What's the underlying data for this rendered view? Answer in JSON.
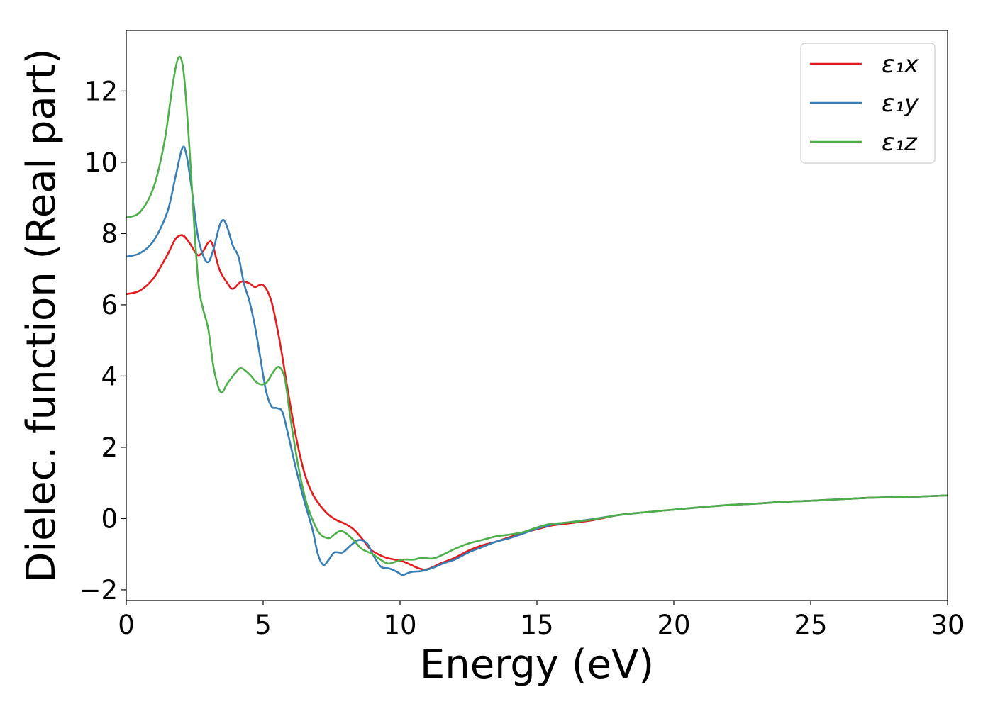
{
  "chart_data": {
    "type": "line",
    "title": "",
    "xlabel": "Energy (eV)",
    "ylabel": "Dielec. function (Real part)",
    "xlim": [
      0,
      30
    ],
    "ylim": [
      -2.3,
      13.7
    ],
    "xticks": [
      0,
      5,
      10,
      15,
      20,
      25,
      30
    ],
    "xtick_labels": [
      "0",
      "5",
      "10",
      "15",
      "20",
      "25",
      "30"
    ],
    "yticks": [
      -2,
      0,
      2,
      4,
      6,
      8,
      10,
      12
    ],
    "ytick_labels": [
      "−2",
      "0",
      "2",
      "4",
      "6",
      "8",
      "10",
      "12"
    ],
    "grid": false,
    "legend": {
      "position": "top-right"
    },
    "series": [
      {
        "name": "ε₁x",
        "color": "#e41a1c",
        "points": [
          [
            0,
            6.3
          ],
          [
            0.5,
            6.4
          ],
          [
            1.0,
            6.75
          ],
          [
            1.5,
            7.4
          ],
          [
            1.8,
            7.85
          ],
          [
            2.05,
            7.95
          ],
          [
            2.3,
            7.75
          ],
          [
            2.6,
            7.4
          ],
          [
            2.8,
            7.5
          ],
          [
            3.0,
            7.75
          ],
          [
            3.15,
            7.7
          ],
          [
            3.4,
            7.0
          ],
          [
            3.7,
            6.6
          ],
          [
            3.9,
            6.45
          ],
          [
            4.2,
            6.65
          ],
          [
            4.5,
            6.6
          ],
          [
            4.7,
            6.5
          ],
          [
            5.0,
            6.55
          ],
          [
            5.3,
            6.1
          ],
          [
            5.6,
            5.0
          ],
          [
            5.9,
            3.6
          ],
          [
            6.2,
            2.3
          ],
          [
            6.5,
            1.3
          ],
          [
            6.8,
            0.7
          ],
          [
            7.1,
            0.35
          ],
          [
            7.4,
            0.1
          ],
          [
            7.7,
            -0.05
          ],
          [
            8.0,
            -0.15
          ],
          [
            8.3,
            -0.3
          ],
          [
            8.6,
            -0.55
          ],
          [
            8.9,
            -0.85
          ],
          [
            9.2,
            -1.0
          ],
          [
            9.5,
            -1.1
          ],
          [
            9.8,
            -1.15
          ],
          [
            10.1,
            -1.2
          ],
          [
            10.4,
            -1.3
          ],
          [
            10.7,
            -1.4
          ],
          [
            11.0,
            -1.42
          ],
          [
            11.5,
            -1.25
          ],
          [
            12.0,
            -1.1
          ],
          [
            12.5,
            -0.9
          ],
          [
            13.0,
            -0.75
          ],
          [
            13.5,
            -0.65
          ],
          [
            14.0,
            -0.52
          ],
          [
            14.5,
            -0.4
          ],
          [
            15.0,
            -0.3
          ],
          [
            15.5,
            -0.2
          ],
          [
            16.0,
            -0.15
          ],
          [
            17.0,
            -0.05
          ],
          [
            18.0,
            0.1
          ],
          [
            19.0,
            0.18
          ],
          [
            20.0,
            0.25
          ],
          [
            21.0,
            0.32
          ],
          [
            22.0,
            0.38
          ],
          [
            23.0,
            0.42
          ],
          [
            24.0,
            0.47
          ],
          [
            25.0,
            0.5
          ],
          [
            26.0,
            0.54
          ],
          [
            27.0,
            0.58
          ],
          [
            28.0,
            0.6
          ],
          [
            29.0,
            0.62
          ],
          [
            30.0,
            0.65
          ]
        ]
      },
      {
        "name": "ε₁y",
        "color": "#377eb8",
        "points": [
          [
            0,
            7.35
          ],
          [
            0.5,
            7.45
          ],
          [
            1.0,
            7.8
          ],
          [
            1.5,
            8.6
          ],
          [
            1.8,
            9.6
          ],
          [
            2.05,
            10.4
          ],
          [
            2.2,
            10.2
          ],
          [
            2.4,
            9.2
          ],
          [
            2.6,
            8.0
          ],
          [
            2.8,
            7.4
          ],
          [
            3.0,
            7.2
          ],
          [
            3.2,
            7.6
          ],
          [
            3.4,
            8.2
          ],
          [
            3.55,
            8.38
          ],
          [
            3.7,
            8.15
          ],
          [
            3.9,
            7.65
          ],
          [
            4.1,
            7.35
          ],
          [
            4.3,
            6.6
          ],
          [
            4.5,
            6.1
          ],
          [
            4.7,
            5.4
          ],
          [
            4.9,
            4.5
          ],
          [
            5.1,
            3.6
          ],
          [
            5.3,
            3.15
          ],
          [
            5.5,
            3.1
          ],
          [
            5.7,
            3.0
          ],
          [
            5.9,
            2.4
          ],
          [
            6.2,
            1.4
          ],
          [
            6.5,
            0.5
          ],
          [
            6.8,
            -0.3
          ],
          [
            7.0,
            -1.0
          ],
          [
            7.2,
            -1.3
          ],
          [
            7.4,
            -1.15
          ],
          [
            7.6,
            -0.95
          ],
          [
            7.9,
            -0.95
          ],
          [
            8.2,
            -0.75
          ],
          [
            8.5,
            -0.6
          ],
          [
            8.8,
            -0.7
          ],
          [
            9.0,
            -1.0
          ],
          [
            9.3,
            -1.35
          ],
          [
            9.6,
            -1.4
          ],
          [
            9.9,
            -1.5
          ],
          [
            10.1,
            -1.58
          ],
          [
            10.4,
            -1.5
          ],
          [
            10.8,
            -1.47
          ],
          [
            11.2,
            -1.38
          ],
          [
            11.6,
            -1.25
          ],
          [
            12.0,
            -1.15
          ],
          [
            12.5,
            -0.95
          ],
          [
            13.0,
            -0.8
          ],
          [
            13.5,
            -0.65
          ],
          [
            14.0,
            -0.55
          ],
          [
            14.5,
            -0.42
          ],
          [
            15.0,
            -0.28
          ],
          [
            15.5,
            -0.18
          ],
          [
            16.0,
            -0.12
          ],
          [
            17.0,
            -0.02
          ],
          [
            18.0,
            0.1
          ],
          [
            19.0,
            0.18
          ],
          [
            20.0,
            0.25
          ],
          [
            21.0,
            0.32
          ],
          [
            22.0,
            0.38
          ],
          [
            23.0,
            0.42
          ],
          [
            24.0,
            0.47
          ],
          [
            25.0,
            0.5
          ],
          [
            26.0,
            0.54
          ],
          [
            27.0,
            0.58
          ],
          [
            28.0,
            0.6
          ],
          [
            29.0,
            0.62
          ],
          [
            30.0,
            0.65
          ]
        ]
      },
      {
        "name": "ε₁z",
        "color": "#4daf4a",
        "points": [
          [
            0,
            8.45
          ],
          [
            0.5,
            8.6
          ],
          [
            1.0,
            9.3
          ],
          [
            1.4,
            10.6
          ],
          [
            1.7,
            12.2
          ],
          [
            1.92,
            12.95
          ],
          [
            2.1,
            12.5
          ],
          [
            2.3,
            10.5
          ],
          [
            2.5,
            8.0
          ],
          [
            2.65,
            6.5
          ],
          [
            2.8,
            5.9
          ],
          [
            3.0,
            5.3
          ],
          [
            3.2,
            4.2
          ],
          [
            3.45,
            3.55
          ],
          [
            3.7,
            3.8
          ],
          [
            4.0,
            4.1
          ],
          [
            4.2,
            4.22
          ],
          [
            4.5,
            4.05
          ],
          [
            4.8,
            3.8
          ],
          [
            5.1,
            3.8
          ],
          [
            5.4,
            4.15
          ],
          [
            5.6,
            4.25
          ],
          [
            5.8,
            3.9
          ],
          [
            6.0,
            2.8
          ],
          [
            6.3,
            1.4
          ],
          [
            6.6,
            0.4
          ],
          [
            6.9,
            -0.2
          ],
          [
            7.1,
            -0.45
          ],
          [
            7.4,
            -0.55
          ],
          [
            7.6,
            -0.45
          ],
          [
            7.8,
            -0.35
          ],
          [
            8.0,
            -0.4
          ],
          [
            8.3,
            -0.6
          ],
          [
            8.6,
            -0.85
          ],
          [
            9.0,
            -1.0
          ],
          [
            9.5,
            -1.25
          ],
          [
            9.8,
            -1.22
          ],
          [
            10.1,
            -1.15
          ],
          [
            10.5,
            -1.15
          ],
          [
            10.8,
            -1.1
          ],
          [
            11.2,
            -1.12
          ],
          [
            11.6,
            -1.0
          ],
          [
            12.0,
            -0.85
          ],
          [
            12.5,
            -0.7
          ],
          [
            13.0,
            -0.6
          ],
          [
            13.5,
            -0.5
          ],
          [
            14.0,
            -0.45
          ],
          [
            14.5,
            -0.38
          ],
          [
            15.0,
            -0.25
          ],
          [
            15.5,
            -0.15
          ],
          [
            16.0,
            -0.12
          ],
          [
            17.0,
            -0.03
          ],
          [
            18.0,
            0.1
          ],
          [
            19.0,
            0.18
          ],
          [
            20.0,
            0.25
          ],
          [
            21.0,
            0.32
          ],
          [
            22.0,
            0.38
          ],
          [
            23.0,
            0.42
          ],
          [
            24.0,
            0.47
          ],
          [
            25.0,
            0.5
          ],
          [
            26.0,
            0.54
          ],
          [
            27.0,
            0.58
          ],
          [
            28.0,
            0.6
          ],
          [
            29.0,
            0.62
          ],
          [
            30.0,
            0.65
          ]
        ]
      }
    ]
  }
}
